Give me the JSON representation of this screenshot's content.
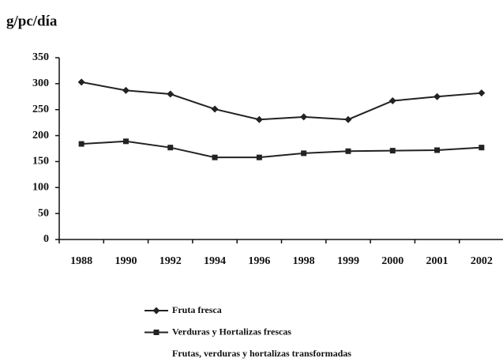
{
  "chart_data": {
    "type": "line",
    "ylabel": "g/pc/día",
    "categories": [
      "1988",
      "1990",
      "1992",
      "1994",
      "1996",
      "1998",
      "1999",
      "2000",
      "2001",
      "2002"
    ],
    "series": [
      {
        "name": "Fruta fresca",
        "color": "#222222",
        "marker": "diamond",
        "values": [
          303,
          287,
          280,
          251,
          231,
          236,
          231,
          267,
          275,
          282
        ]
      },
      {
        "name": "Verduras y Hortalizas frescas",
        "color": "#222222",
        "marker": "square",
        "values": [
          184,
          189,
          177,
          158,
          158,
          166,
          170,
          171,
          172,
          177
        ]
      },
      {
        "name": "Frutas, verduras y hortalizas transformadas",
        "values": [
          null,
          null,
          null,
          null,
          null,
          null,
          null,
          null,
          null,
          null
        ]
      }
    ],
    "ylim": [
      0,
      350
    ],
    "yticks": [
      0,
      50,
      100,
      150,
      200,
      250,
      300,
      350
    ],
    "grid": false
  }
}
